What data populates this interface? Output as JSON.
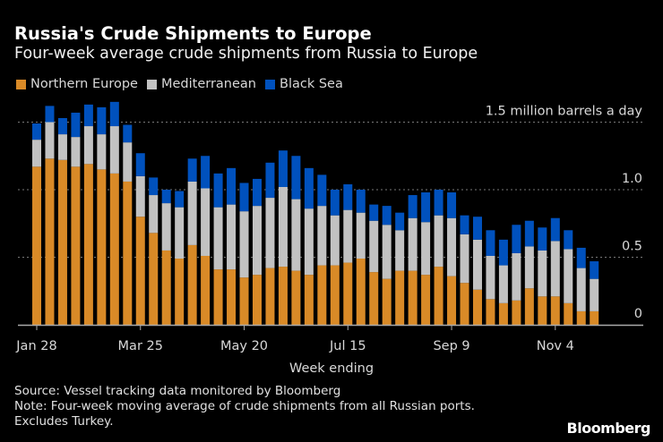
{
  "chart_data": {
    "type": "bar",
    "stacked": true,
    "title": "Russia's Crude Shipments to Europe",
    "subtitle": "Four-week average crude shipments from Russia to Europe",
    "xlabel": "Week ending",
    "ylabel": "",
    "unit_label": "1.5 million barrels a day",
    "ylim": [
      0,
      1.5
    ],
    "yticks": [
      {
        "value": 0,
        "label": "0"
      },
      {
        "value": 0.5,
        "label": "0.5"
      },
      {
        "value": 1.0,
        "label": "1.0"
      },
      {
        "value": 1.5,
        "label": "1.5 million barrels a day"
      }
    ],
    "xtick_labels": [
      "Jan 28",
      "Mar 25",
      "May 20",
      "Jul 15",
      "Sep 9",
      "Nov 4"
    ],
    "grid": "horizontal dotted",
    "legend_position": "top-left",
    "categories": [
      "Jan 28",
      "Feb 4",
      "Feb 11",
      "Feb 18",
      "Feb 25",
      "Mar 4",
      "Mar 11",
      "Mar 18",
      "Mar 25",
      "Apr 1",
      "Apr 8",
      "Apr 15",
      "Apr 22",
      "Apr 29",
      "May 6",
      "May 13",
      "May 20",
      "May 27",
      "Jun 3",
      "Jun 10",
      "Jun 17",
      "Jun 24",
      "Jul 1",
      "Jul 8",
      "Jul 15",
      "Jul 22",
      "Jul 29",
      "Aug 5",
      "Aug 12",
      "Aug 19",
      "Aug 26",
      "Sep 2",
      "Sep 9",
      "Sep 16",
      "Sep 23",
      "Sep 30",
      "Oct 7",
      "Oct 14",
      "Oct 21",
      "Oct 28",
      "Nov 4",
      "Nov 11",
      "Nov 18",
      "Nov 25"
    ],
    "series": [
      {
        "name": "Northern Europe",
        "color": "#d98a27",
        "values": [
          1.17,
          1.23,
          1.22,
          1.17,
          1.19,
          1.15,
          1.12,
          1.06,
          0.8,
          0.68,
          0.55,
          0.49,
          0.59,
          0.51,
          0.41,
          0.41,
          0.35,
          0.37,
          0.42,
          0.43,
          0.4,
          0.37,
          0.44,
          0.44,
          0.46,
          0.49,
          0.39,
          0.34,
          0.4,
          0.4,
          0.37,
          0.43,
          0.36,
          0.31,
          0.26,
          0.19,
          0.16,
          0.18,
          0.27,
          0.21,
          0.21,
          0.16,
          0.1,
          0.1
        ]
      },
      {
        "name": "Mediterranean",
        "color": "#c2c2c2",
        "values": [
          0.2,
          0.27,
          0.19,
          0.22,
          0.28,
          0.26,
          0.35,
          0.29,
          0.3,
          0.28,
          0.35,
          0.38,
          0.47,
          0.5,
          0.46,
          0.48,
          0.49,
          0.51,
          0.52,
          0.59,
          0.53,
          0.49,
          0.44,
          0.37,
          0.39,
          0.34,
          0.38,
          0.4,
          0.3,
          0.39,
          0.39,
          0.38,
          0.43,
          0.36,
          0.37,
          0.32,
          0.28,
          0.35,
          0.31,
          0.34,
          0.41,
          0.4,
          0.32,
          0.24
        ]
      },
      {
        "name": "Black Sea",
        "color": "#0051bd",
        "values": [
          0.12,
          0.12,
          0.12,
          0.18,
          0.16,
          0.2,
          0.18,
          0.13,
          0.17,
          0.13,
          0.1,
          0.12,
          0.17,
          0.24,
          0.25,
          0.27,
          0.21,
          0.2,
          0.26,
          0.27,
          0.32,
          0.3,
          0.23,
          0.19,
          0.19,
          0.17,
          0.12,
          0.14,
          0.13,
          0.17,
          0.22,
          0.19,
          0.19,
          0.14,
          0.17,
          0.19,
          0.19,
          0.21,
          0.19,
          0.17,
          0.17,
          0.14,
          0.15,
          0.13
        ]
      }
    ]
  },
  "footer": {
    "source": "Source: Vessel tracking data monitored by Bloomberg",
    "note1": "Note: Four-week moving average of crude shipments from all Russian ports.",
    "note2": "Excludes Turkey.",
    "logo": "Bloomberg"
  }
}
